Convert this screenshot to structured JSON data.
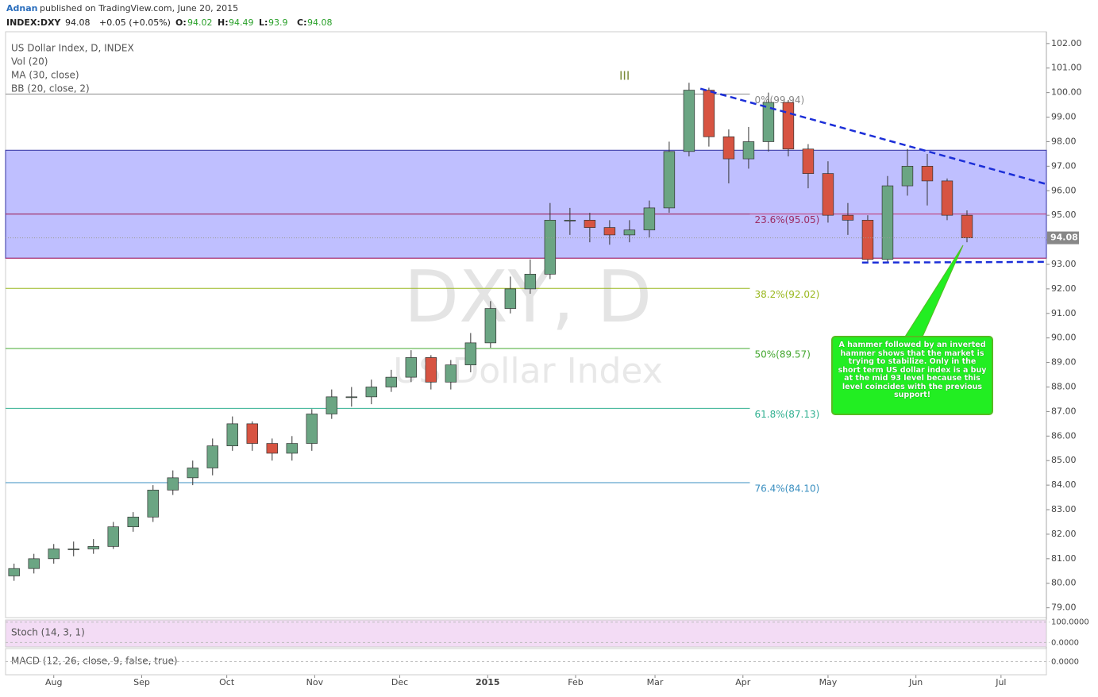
{
  "header": {
    "author": "Adnan",
    "published": "published on TradingView.com, June 20, 2015",
    "symbol": "INDEX:DXY",
    "last": 94.08,
    "change": "+0.05 (+0.05%)",
    "open_label": "O:",
    "open": 94.02,
    "high_label": "H:",
    "high": 94.49,
    "low_label": "L:",
    "low": 93.9,
    "close_label": "C:",
    "close": 94.08
  },
  "legend": [
    "US Dollar Index, D, INDEX",
    "Vol (20)",
    "MA (30, close)",
    "BB (20, close, 2)"
  ],
  "watermark": [
    "DXY, D",
    "US Dollar Index"
  ],
  "wave_label": "III",
  "annotation": "A hammer followed by an inverted hammer shows that the market is trying to stabilize. Only in the short term US dollar index is a buy at the mid 93 level because this level coincides with the previous support!",
  "chart_data": {
    "type": "candlestick",
    "x": [
      -14,
      -7,
      0,
      7,
      14,
      21,
      28,
      35,
      42,
      49,
      56,
      63,
      70,
      77,
      84,
      91,
      98,
      105,
      112,
      119,
      126,
      133,
      140,
      147,
      154,
      161,
      168,
      175,
      182,
      189,
      196,
      203,
      210,
      217,
      224,
      231,
      238,
      245,
      252,
      259,
      266,
      273,
      280,
      287,
      294,
      301,
      308,
      315,
      322
    ],
    "open": [
      80.3,
      80.6,
      81.0,
      81.4,
      81.4,
      81.5,
      82.3,
      82.7,
      83.8,
      84.3,
      84.7,
      85.6,
      86.5,
      85.7,
      85.3,
      85.7,
      86.9,
      87.6,
      87.6,
      88.0,
      88.4,
      89.2,
      88.2,
      88.9,
      89.8,
      91.2,
      92.0,
      92.6,
      94.8,
      94.8,
      94.5,
      94.2,
      94.4,
      95.3,
      97.6,
      100.1,
      98.2,
      97.3,
      98.0,
      99.6,
      97.7,
      96.7,
      95.0,
      94.8,
      93.2,
      96.2,
      97.0,
      96.4,
      95.0
    ],
    "high": [
      80.8,
      81.2,
      81.6,
      81.7,
      81.8,
      82.5,
      82.9,
      84.0,
      84.6,
      85.0,
      85.9,
      86.8,
      86.6,
      85.9,
      86.0,
      87.1,
      87.9,
      88.0,
      88.3,
      88.7,
      89.5,
      89.3,
      89.1,
      90.2,
      91.5,
      92.5,
      93.2,
      95.5,
      95.3,
      95.1,
      94.8,
      94.8,
      95.6,
      98.0,
      100.4,
      100.2,
      98.5,
      98.6,
      100.0,
      99.7,
      97.9,
      97.2,
      95.5,
      95.0,
      96.6,
      97.7,
      97.5,
      96.5,
      95.2
    ],
    "low": [
      80.1,
      80.4,
      80.8,
      81.1,
      81.2,
      81.4,
      82.1,
      82.5,
      83.6,
      84.0,
      84.4,
      85.4,
      85.4,
      85.0,
      85.0,
      85.4,
      86.7,
      87.2,
      87.3,
      87.8,
      88.2,
      87.9,
      87.9,
      88.6,
      89.6,
      91.0,
      91.8,
      92.4,
      94.2,
      93.9,
      93.8,
      93.9,
      94.1,
      95.1,
      97.4,
      97.8,
      96.3,
      96.9,
      97.6,
      97.4,
      96.1,
      94.7,
      94.2,
      93.1,
      93.1,
      95.8,
      95.4,
      94.8,
      93.9
    ],
    "close": [
      80.6,
      81.0,
      81.4,
      81.4,
      81.5,
      82.3,
      82.7,
      83.8,
      84.3,
      84.7,
      85.6,
      86.5,
      85.7,
      85.3,
      85.7,
      86.9,
      87.6,
      87.6,
      88.0,
      88.4,
      89.2,
      88.2,
      88.9,
      89.8,
      91.2,
      92.0,
      92.6,
      94.8,
      94.8,
      94.5,
      94.2,
      94.4,
      95.3,
      97.6,
      100.1,
      98.2,
      97.3,
      98.0,
      99.6,
      97.7,
      96.7,
      95.0,
      94.8,
      93.2,
      96.2,
      97.0,
      96.4,
      95.0,
      94.08
    ],
    "up_color": "#6ba583",
    "down_color": "#d75442",
    "xlim": [
      -17,
      350
    ],
    "xticks": [
      {
        "value": 0,
        "label": "Aug"
      },
      {
        "value": 31,
        "label": "Sep"
      },
      {
        "value": 61,
        "label": "Oct"
      },
      {
        "value": 92,
        "label": "Nov"
      },
      {
        "value": 122,
        "label": "Dec"
      },
      {
        "value": 153,
        "label": "2015"
      },
      {
        "value": 184,
        "label": "Feb"
      },
      {
        "value": 212,
        "label": "Mar"
      },
      {
        "value": 243,
        "label": "Apr"
      },
      {
        "value": 273,
        "label": "May"
      },
      {
        "value": 304,
        "label": "Jun"
      },
      {
        "value": 334,
        "label": "Jul"
      }
    ],
    "ylim": [
      78.6,
      102.48
    ],
    "yticks": [
      {
        "value": 102,
        "label": "102.00"
      },
      {
        "value": 101,
        "label": "101.00"
      },
      {
        "value": 100,
        "label": "100.00"
      },
      {
        "value": 99,
        "label": "99.00"
      },
      {
        "value": 98,
        "label": "98.00"
      },
      {
        "value": 97,
        "label": "97.00"
      },
      {
        "value": 96,
        "label": "96.00"
      },
      {
        "value": 95,
        "label": "95.00"
      },
      {
        "value": 94,
        "label": "94.00"
      },
      {
        "value": 93,
        "label": "93.00"
      },
      {
        "value": 92,
        "label": "92.00"
      },
      {
        "value": 91,
        "label": "91.00"
      },
      {
        "value": 90,
        "label": "90.00"
      },
      {
        "value": 89,
        "label": "89.00"
      },
      {
        "value": 88,
        "label": "88.00"
      },
      {
        "value": 87,
        "label": "87.00"
      },
      {
        "value": 86,
        "label": "86.00"
      },
      {
        "value": 85,
        "label": "85.00"
      },
      {
        "value": 84,
        "label": "84.00"
      },
      {
        "value": 83,
        "label": "83.00"
      },
      {
        "value": 82,
        "label": "82.00"
      },
      {
        "value": 81,
        "label": "81.00"
      },
      {
        "value": 80,
        "label": "80.00"
      },
      {
        "value": 79,
        "label": "79.00"
      }
    ],
    "zone": {
      "low": 93.25,
      "high": 97.65,
      "color": "#8080ff"
    },
    "levels": [
      {
        "value": 95.05,
        "color": "#c0306a"
      },
      {
        "value": 93.25,
        "color": "#c0306a"
      }
    ],
    "fib_end": 246,
    "fibs": [
      {
        "value": 99.94,
        "label": "0%(99.94)",
        "color": "#888888"
      },
      {
        "value": 95.05,
        "label": "23.6%(95.05)",
        "color": "#9c2c64"
      },
      {
        "value": 92.02,
        "label": "38.2%(92.02)",
        "color": "#9ab820"
      },
      {
        "value": 89.57,
        "label": "50%(89.57)",
        "color": "#46a832"
      },
      {
        "value": 87.13,
        "label": "61.8%(87.13)",
        "color": "#30b090"
      },
      {
        "value": 84.1,
        "label": "76.4%(84.10)",
        "color": "#3a8fc0"
      }
    ],
    "trendlines": [
      {
        "x": [
          228,
          350
        ],
        "y": [
          100.16,
          96.27
        ],
        "color": "#1c2fd8"
      },
      {
        "x": [
          285,
          350
        ],
        "y": [
          93.07,
          93.1
        ],
        "color": "#1c2fd8"
      }
    ],
    "indicators": [
      {
        "label": "Stoch (14, 3, 1)",
        "ylim": [
          -22,
          110
        ],
        "ticks": [
          {
            "value": 100,
            "label": "100.0000"
          },
          {
            "value": 0,
            "label": "0.0000"
          }
        ]
      },
      {
        "label": "MACD (12, 26, close, 9, false, true)",
        "ylim": [
          -0.5,
          0.5
        ],
        "ticks": [
          {
            "value": 0,
            "label": "0.0000"
          }
        ]
      }
    ]
  }
}
